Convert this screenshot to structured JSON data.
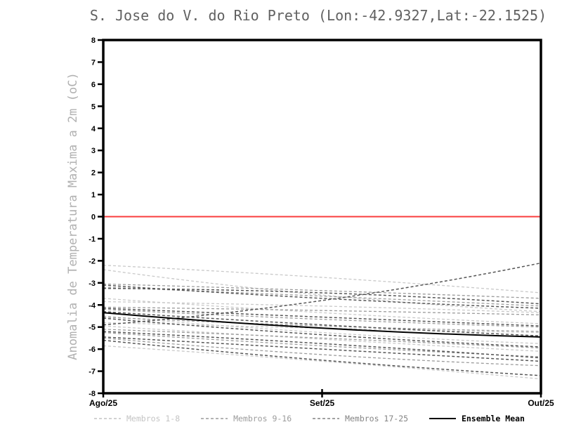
{
  "chart_data": {
    "type": "line",
    "title": "S. Jose do V. do Rio Preto (Lon:-42.9327,Lat:-22.1525)",
    "ylabel": "Anomalia de Temperatura Maxima a 2m (oC)",
    "xlabel": "",
    "x_categories": [
      "Ago/25",
      "Set/25",
      "Out/25"
    ],
    "ylim": [
      -8,
      8
    ],
    "y_ticks": [
      8,
      7,
      6,
      5,
      4,
      3,
      2,
      1,
      0,
      -1,
      -2,
      -3,
      -4,
      -5,
      -6,
      -7,
      -8
    ],
    "grid": false,
    "legend_position": "bottom",
    "zero_line": {
      "value": 0,
      "color": "#fa3c3c"
    },
    "groups": [
      {
        "name": "Membros 1-8",
        "color": "#c9c9c9",
        "width": 1.3,
        "dashed": true
      },
      {
        "name": "Membros 9-16",
        "color": "#9b9b9b",
        "width": 1.3,
        "dashed": true
      },
      {
        "name": "Membros 17-25",
        "color": "#565656",
        "width": 1.5,
        "dashed": true
      }
    ],
    "members": [
      {
        "group": 0,
        "values": [
          -2.2,
          -2.75,
          -3.45
        ]
      },
      {
        "group": 0,
        "values": [
          -2.4,
          -3.55,
          -4.3
        ]
      },
      {
        "group": 0,
        "values": [
          -3.7,
          -4.35,
          -4.85
        ]
      },
      {
        "group": 0,
        "values": [
          -3.85,
          -4.05,
          -4.35
        ]
      },
      {
        "group": 0,
        "values": [
          -4.5,
          -5.25,
          -5.75
        ]
      },
      {
        "group": 0,
        "values": [
          -4.8,
          -5.05,
          -5.25
        ]
      },
      {
        "group": 0,
        "values": [
          -4.95,
          -5.55,
          -6.1
        ]
      },
      {
        "group": 0,
        "values": [
          -5.85,
          -6.55,
          -7.35
        ]
      },
      {
        "group": 1,
        "values": [
          -3.05,
          -3.35,
          -3.7
        ]
      },
      {
        "group": 1,
        "values": [
          -3.2,
          -3.6,
          -4.05
        ]
      },
      {
        "group": 1,
        "values": [
          -4.1,
          -4.25,
          -4.45
        ]
      },
      {
        "group": 1,
        "values": [
          -4.2,
          -4.65,
          -5.0
        ]
      },
      {
        "group": 1,
        "values": [
          -4.55,
          -4.95,
          -5.2
        ]
      },
      {
        "group": 1,
        "values": [
          -5.1,
          -5.5,
          -5.95
        ]
      },
      {
        "group": 1,
        "values": [
          -5.25,
          -5.85,
          -6.35
        ]
      },
      {
        "group": 1,
        "values": [
          -5.5,
          -6.25,
          -6.75
        ]
      },
      {
        "group": 2,
        "values": [
          -3.1,
          -3.7,
          -4.15
        ]
      },
      {
        "group": 2,
        "values": [
          -3.25,
          -3.45,
          -3.95
        ]
      },
      {
        "group": 2,
        "values": [
          -4.15,
          -4.55,
          -4.95
        ]
      },
      {
        "group": 2,
        "values": [
          -4.3,
          -4.9,
          -5.4
        ]
      },
      {
        "group": 2,
        "values": [
          -4.9,
          -3.8,
          -2.1
        ]
      },
      {
        "group": 2,
        "values": [
          -4.6,
          -5.35,
          -5.9
        ]
      },
      {
        "group": 2,
        "values": [
          -5.2,
          -5.75,
          -6.4
        ]
      },
      {
        "group": 2,
        "values": [
          -5.45,
          -6.0,
          -6.55
        ]
      },
      {
        "group": 2,
        "values": [
          -5.6,
          -6.5,
          -7.2
        ]
      }
    ],
    "ensemble_mean": {
      "name": "Ensemble Mean",
      "color": "#000000",
      "width": 2,
      "values": [
        -4.35,
        -5.05,
        -5.45
      ]
    }
  },
  "legend": {
    "items": [
      {
        "label": "Membros 1-8",
        "color": "#c4c4c4",
        "dashed": true
      },
      {
        "label": "Membros 9-16",
        "color": "#9c9c9c",
        "dashed": true
      },
      {
        "label": "Membros 17-25",
        "color": "#848484",
        "dashed": true
      },
      {
        "label": "Ensemble Mean",
        "color": "#000000",
        "dashed": false
      }
    ]
  }
}
